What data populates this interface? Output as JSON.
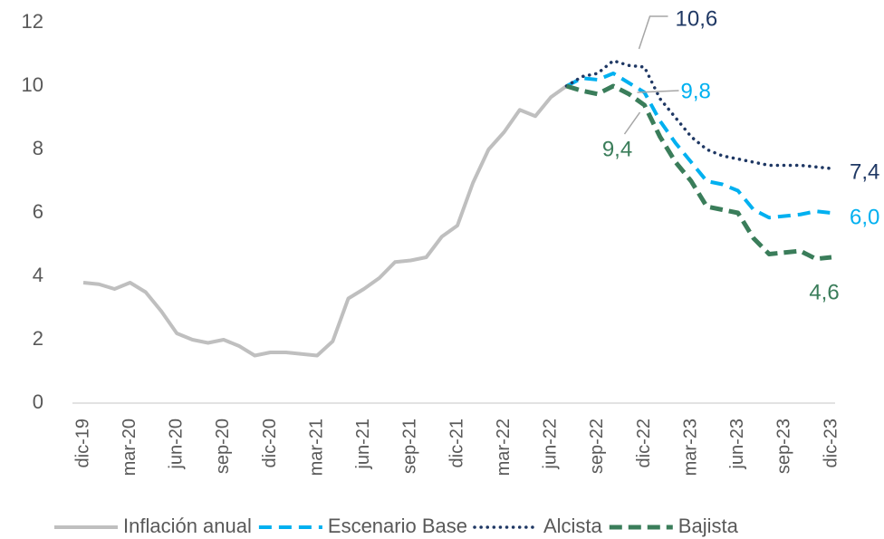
{
  "chart_data": {
    "type": "line",
    "categories": [
      "dic-19",
      null,
      null,
      "mar-20",
      null,
      null,
      "jun-20",
      null,
      null,
      "sep-20",
      null,
      null,
      "dic-20",
      null,
      null,
      "mar-21",
      null,
      null,
      "jun-21",
      null,
      null,
      "sep-21",
      null,
      null,
      "dic-21",
      null,
      null,
      "mar-22",
      null,
      null,
      "jun-22",
      null,
      null,
      "sep-22",
      null,
      null,
      "dic-22",
      null,
      null,
      "mar-23",
      null,
      null,
      "jun-23",
      null,
      null,
      "sep-23",
      null,
      null,
      "dic-23"
    ],
    "series": [
      {
        "name": "Inflación anual",
        "color": "#bfbfbf",
        "style": "solid",
        "values": [
          3.8,
          3.75,
          3.6,
          3.8,
          3.5,
          2.9,
          2.2,
          2.0,
          1.9,
          2.0,
          1.8,
          1.5,
          1.6,
          1.6,
          1.55,
          1.5,
          1.95,
          3.3,
          3.6,
          3.95,
          4.45,
          4.5,
          4.6,
          5.25,
          5.6,
          6.95,
          8.0,
          8.55,
          9.25,
          9.05,
          9.65,
          10.0,
          null,
          null,
          null,
          null,
          null,
          null,
          null,
          null,
          null,
          null,
          null,
          null,
          null,
          null,
          null,
          null,
          null
        ]
      },
      {
        "name": "Escenario Base",
        "color": "#00b0f0",
        "style": "dashed",
        "values": [
          null,
          null,
          null,
          null,
          null,
          null,
          null,
          null,
          null,
          null,
          null,
          null,
          null,
          null,
          null,
          null,
          null,
          null,
          null,
          null,
          null,
          null,
          null,
          null,
          null,
          null,
          null,
          null,
          null,
          null,
          null,
          10.0,
          10.25,
          10.2,
          10.4,
          10.1,
          9.8,
          8.9,
          8.2,
          7.6,
          7.0,
          6.9,
          6.7,
          6.1,
          5.85,
          5.9,
          5.95,
          6.05,
          6.0
        ],
        "value_labels": [
          null,
          null,
          null,
          null,
          null,
          null,
          null,
          null,
          null,
          null,
          null,
          null,
          null,
          null,
          null,
          null,
          null,
          null,
          null,
          null,
          null,
          null,
          null,
          null,
          null,
          null,
          null,
          null,
          null,
          null,
          null,
          null,
          null,
          null,
          null,
          null,
          "9,8",
          null,
          null,
          null,
          null,
          null,
          null,
          null,
          null,
          null,
          null,
          null,
          "6,0"
        ]
      },
      {
        "name": "Alcista",
        "color": "#1f3864",
        "style": "dotted",
        "values": [
          null,
          null,
          null,
          null,
          null,
          null,
          null,
          null,
          null,
          null,
          null,
          null,
          null,
          null,
          null,
          null,
          null,
          null,
          null,
          null,
          null,
          null,
          null,
          null,
          null,
          null,
          null,
          null,
          null,
          null,
          null,
          10.0,
          10.3,
          10.4,
          10.8,
          10.65,
          10.6,
          9.6,
          9.0,
          8.4,
          8.0,
          7.8,
          7.7,
          7.6,
          7.5,
          7.5,
          7.5,
          7.45,
          7.4
        ],
        "value_labels": [
          null,
          null,
          null,
          null,
          null,
          null,
          null,
          null,
          null,
          null,
          null,
          null,
          null,
          null,
          null,
          null,
          null,
          null,
          null,
          null,
          null,
          null,
          null,
          null,
          null,
          null,
          null,
          null,
          null,
          null,
          null,
          null,
          null,
          null,
          null,
          null,
          "10,6",
          null,
          null,
          null,
          null,
          null,
          null,
          null,
          null,
          null,
          null,
          null,
          "7,4"
        ]
      },
      {
        "name": "Bajista",
        "color": "#3a7d5a",
        "style": "dashed-bold",
        "values": [
          null,
          null,
          null,
          null,
          null,
          null,
          null,
          null,
          null,
          null,
          null,
          null,
          null,
          null,
          null,
          null,
          null,
          null,
          null,
          null,
          null,
          null,
          null,
          null,
          null,
          null,
          null,
          null,
          null,
          null,
          null,
          10.0,
          9.85,
          9.75,
          10.0,
          9.75,
          9.4,
          8.4,
          7.6,
          7.0,
          6.2,
          6.1,
          6.0,
          5.2,
          4.7,
          4.75,
          4.8,
          4.55,
          4.6
        ],
        "value_labels": [
          null,
          null,
          null,
          null,
          null,
          null,
          null,
          null,
          null,
          null,
          null,
          null,
          null,
          null,
          null,
          null,
          null,
          null,
          null,
          null,
          null,
          null,
          null,
          null,
          null,
          null,
          null,
          null,
          null,
          null,
          null,
          null,
          null,
          null,
          null,
          null,
          "9,4",
          null,
          null,
          null,
          null,
          null,
          null,
          null,
          null,
          null,
          null,
          null,
          "4,6"
        ]
      }
    ],
    "ylim": [
      0,
      12
    ],
    "yticks": [
      0,
      2,
      4,
      6,
      8,
      10,
      12
    ],
    "grid": false,
    "legend": "bottom"
  }
}
